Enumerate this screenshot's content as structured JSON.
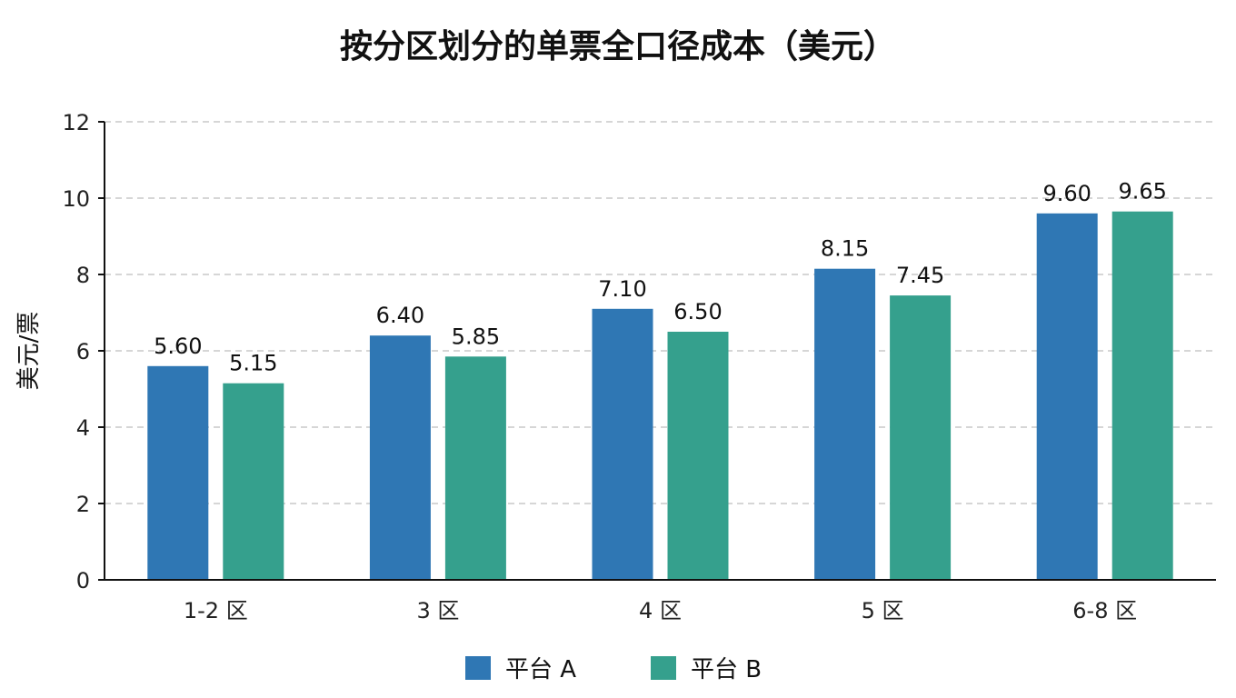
{
  "chart_data": {
    "type": "bar",
    "title": "按分区划分的单票全口径成本（美元）",
    "ylabel": "美元/票",
    "xlabel": "",
    "categories": [
      "1-2 区",
      "3 区",
      "4 区",
      "5 区",
      "6-8 区"
    ],
    "series": [
      {
        "name": "平台 A",
        "values": [
          5.6,
          6.4,
          7.1,
          8.15,
          9.6
        ],
        "labels": [
          "5.60",
          "6.40",
          "7.10",
          "8.15",
          "9.60"
        ],
        "color": "#2f77b4"
      },
      {
        "name": "平台 B",
        "values": [
          5.15,
          5.85,
          6.5,
          7.45,
          9.65
        ],
        "labels": [
          "5.15",
          "5.85",
          "6.50",
          "7.45",
          "9.65"
        ],
        "color": "#35a08d"
      }
    ],
    "ylim": [
      0,
      12
    ],
    "yticks": [
      0,
      2,
      4,
      6,
      8,
      10,
      12
    ],
    "ytick_labels": [
      "0",
      "2",
      "4",
      "6",
      "8",
      "10",
      "12"
    ],
    "grid": true,
    "legend_position": "bottom-center"
  }
}
